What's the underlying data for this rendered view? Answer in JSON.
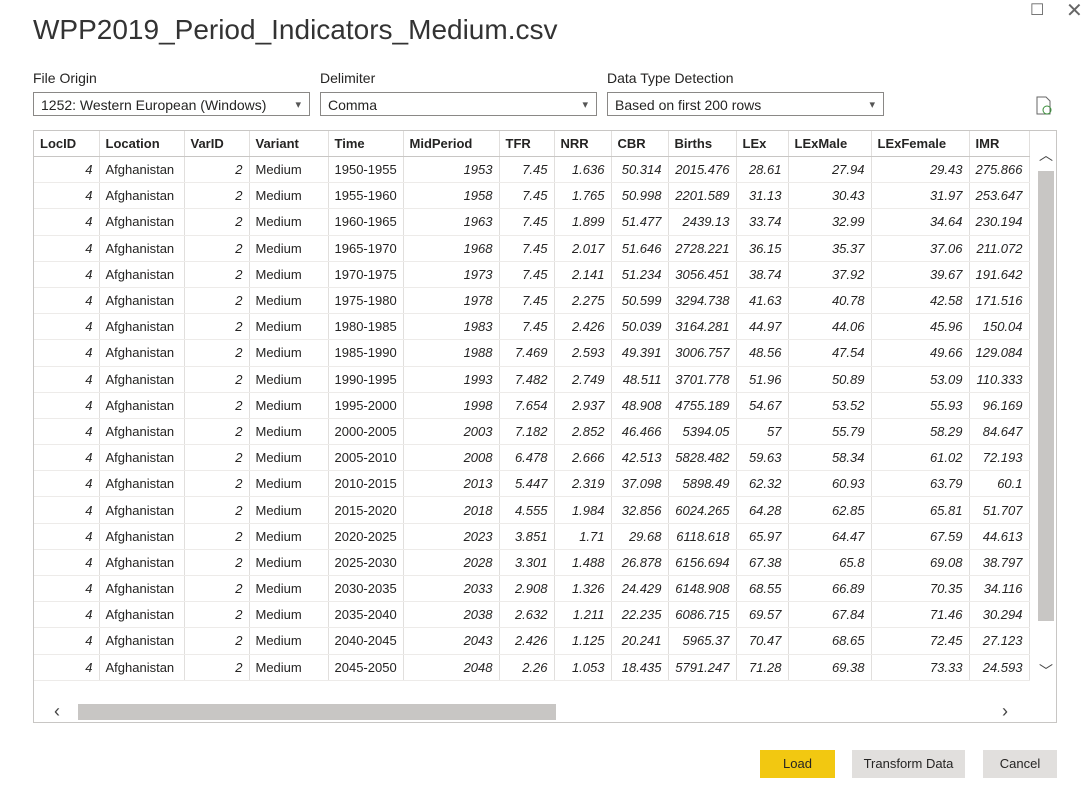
{
  "window_title": "WPP2019_Period_Indicators_Medium.csv",
  "file_origin": {
    "label": "File Origin",
    "value": "1252: Western European (Windows)"
  },
  "delimiter": {
    "label": "Delimiter",
    "value": "Comma"
  },
  "data_type_detection": {
    "label": "Data Type Detection",
    "value": "Based on first 200 rows"
  },
  "table": {
    "columns": [
      "LocID",
      "Location",
      "VarID",
      "Variant",
      "Time",
      "MidPeriod",
      "TFR",
      "NRR",
      "CBR",
      "Births",
      "LEx",
      "LExMale",
      "LExFemale",
      "IMR"
    ],
    "rows": [
      [
        4,
        "Afghanistan",
        2,
        "Medium",
        "1950-1955",
        1953,
        7.45,
        1.636,
        50.314,
        2015.476,
        28.61,
        27.94,
        29.43,
        275.866
      ],
      [
        4,
        "Afghanistan",
        2,
        "Medium",
        "1955-1960",
        1958,
        7.45,
        1.765,
        50.998,
        2201.589,
        31.13,
        30.43,
        31.97,
        253.647
      ],
      [
        4,
        "Afghanistan",
        2,
        "Medium",
        "1960-1965",
        1963,
        7.45,
        1.899,
        51.477,
        2439.13,
        33.74,
        32.99,
        34.64,
        230.194
      ],
      [
        4,
        "Afghanistan",
        2,
        "Medium",
        "1965-1970",
        1968,
        7.45,
        2.017,
        51.646,
        2728.221,
        36.15,
        35.37,
        37.06,
        211.072
      ],
      [
        4,
        "Afghanistan",
        2,
        "Medium",
        "1970-1975",
        1973,
        7.45,
        2.141,
        51.234,
        3056.451,
        38.74,
        37.92,
        39.67,
        191.642
      ],
      [
        4,
        "Afghanistan",
        2,
        "Medium",
        "1975-1980",
        1978,
        7.45,
        2.275,
        50.599,
        3294.738,
        41.63,
        40.78,
        42.58,
        171.516
      ],
      [
        4,
        "Afghanistan",
        2,
        "Medium",
        "1980-1985",
        1983,
        7.45,
        2.426,
        50.039,
        3164.281,
        44.97,
        44.06,
        45.96,
        150.04
      ],
      [
        4,
        "Afghanistan",
        2,
        "Medium",
        "1985-1990",
        1988,
        7.469,
        2.593,
        49.391,
        3006.757,
        48.56,
        47.54,
        49.66,
        129.084
      ],
      [
        4,
        "Afghanistan",
        2,
        "Medium",
        "1990-1995",
        1993,
        7.482,
        2.749,
        48.511,
        3701.778,
        51.96,
        50.89,
        53.09,
        110.333
      ],
      [
        4,
        "Afghanistan",
        2,
        "Medium",
        "1995-2000",
        1998,
        7.654,
        2.937,
        48.908,
        4755.189,
        54.67,
        53.52,
        55.93,
        96.169
      ],
      [
        4,
        "Afghanistan",
        2,
        "Medium",
        "2000-2005",
        2003,
        7.182,
        2.852,
        46.466,
        5394.05,
        57,
        55.79,
        58.29,
        84.647
      ],
      [
        4,
        "Afghanistan",
        2,
        "Medium",
        "2005-2010",
        2008,
        6.478,
        2.666,
        42.513,
        5828.482,
        59.63,
        58.34,
        61.02,
        72.193
      ],
      [
        4,
        "Afghanistan",
        2,
        "Medium",
        "2010-2015",
        2013,
        5.447,
        2.319,
        37.098,
        5898.49,
        62.32,
        60.93,
        63.79,
        60.1
      ],
      [
        4,
        "Afghanistan",
        2,
        "Medium",
        "2015-2020",
        2018,
        4.555,
        1.984,
        32.856,
        6024.265,
        64.28,
        62.85,
        65.81,
        51.707
      ],
      [
        4,
        "Afghanistan",
        2,
        "Medium",
        "2020-2025",
        2023,
        3.851,
        1.71,
        29.68,
        6118.618,
        65.97,
        64.47,
        67.59,
        44.613
      ],
      [
        4,
        "Afghanistan",
        2,
        "Medium",
        "2025-2030",
        2028,
        3.301,
        1.488,
        26.878,
        6156.694,
        67.38,
        65.8,
        69.08,
        38.797
      ],
      [
        4,
        "Afghanistan",
        2,
        "Medium",
        "2030-2035",
        2033,
        2.908,
        1.326,
        24.429,
        6148.908,
        68.55,
        66.89,
        70.35,
        34.116
      ],
      [
        4,
        "Afghanistan",
        2,
        "Medium",
        "2035-2040",
        2038,
        2.632,
        1.211,
        22.235,
        6086.715,
        69.57,
        67.84,
        71.46,
        30.294
      ],
      [
        4,
        "Afghanistan",
        2,
        "Medium",
        "2040-2045",
        2043,
        2.426,
        1.125,
        20.241,
        5965.37,
        70.47,
        68.65,
        72.45,
        27.123
      ],
      [
        4,
        "Afghanistan",
        2,
        "Medium",
        "2045-2050",
        2048,
        2.26,
        1.053,
        18.435,
        5791.247,
        71.28,
        69.38,
        73.33,
        24.593
      ]
    ]
  },
  "buttons": {
    "load": "Load",
    "transform": "Transform Data",
    "cancel": "Cancel"
  }
}
